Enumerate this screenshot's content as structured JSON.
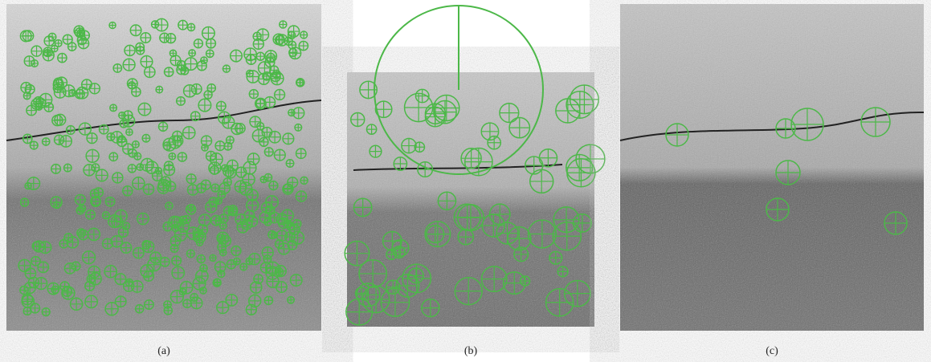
{
  "figure": {
    "panels": [
      {
        "label": "(a)"
      },
      {
        "label": "(b)"
      },
      {
        "label": "(c)"
      }
    ]
  }
}
